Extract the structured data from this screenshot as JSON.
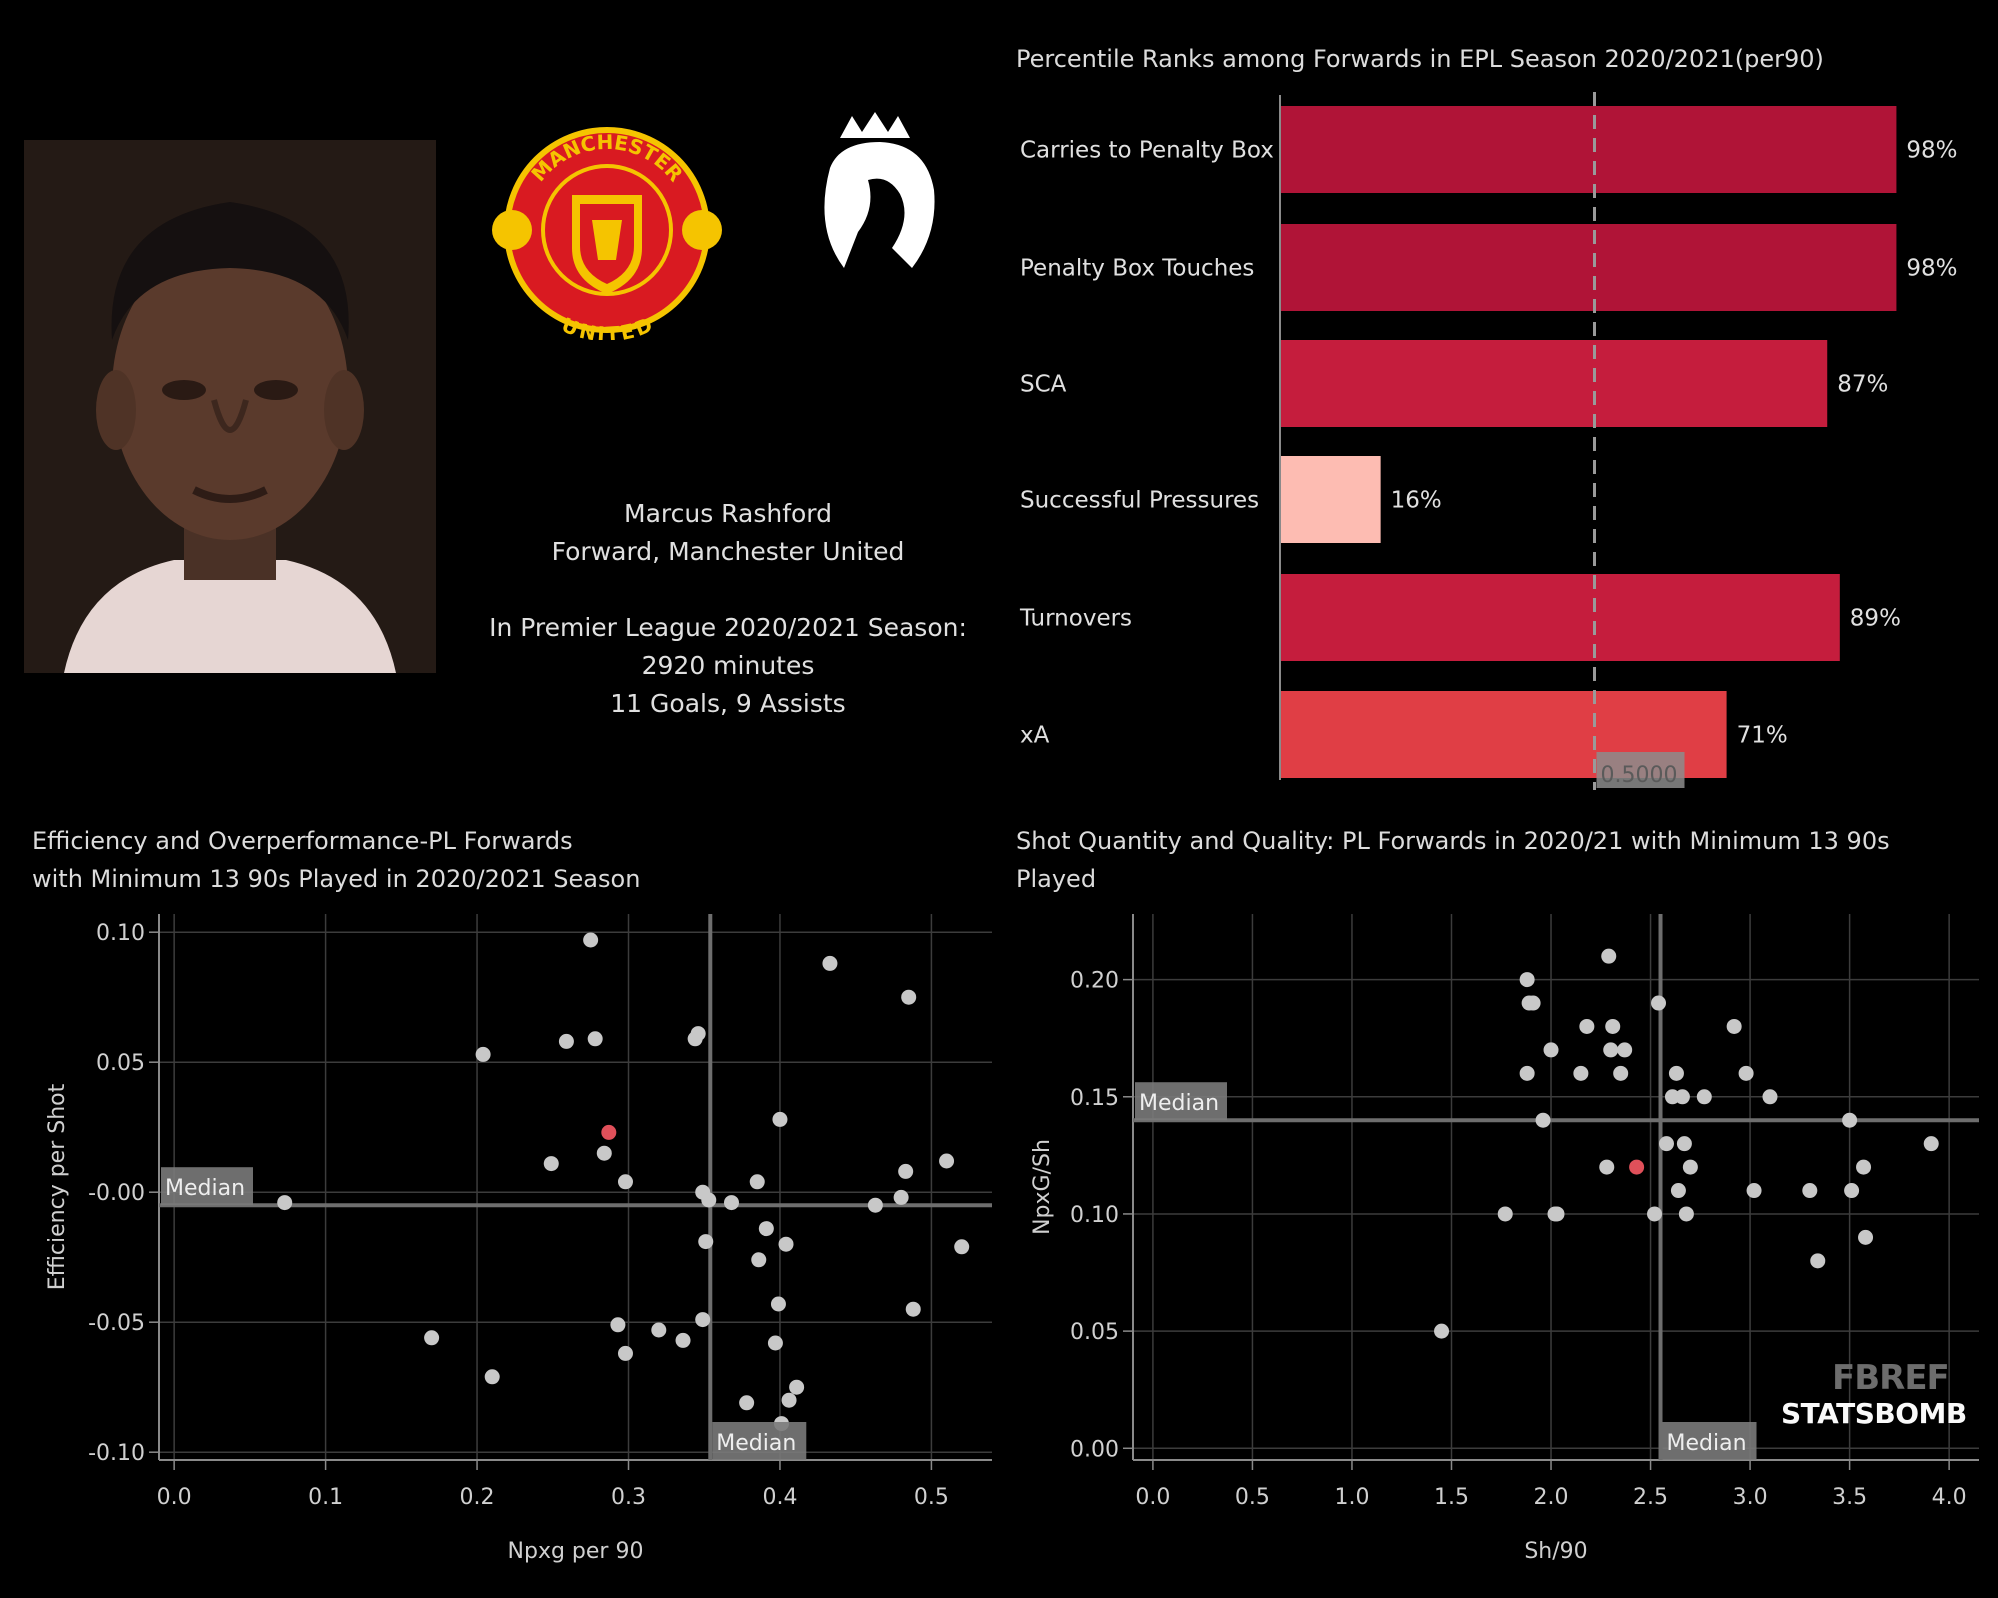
{
  "player": {
    "name": "Marcus Rashford",
    "role": "Forward, Manchester United",
    "season_line": "In Premier League 2020/2021 Season:",
    "minutes": "2920 minutes",
    "goals_assists": "11 Goals, 9 Assists"
  },
  "logos": {
    "club_top": "MANCHESTER",
    "club_bottom": "UNITED",
    "club_icon": "manchester-united-crest",
    "league_icon": "premier-league-lion"
  },
  "watermarks": {
    "fbref": "FBREF",
    "statsbomb": "STATSBOMB"
  },
  "chart_data": [
    {
      "type": "bar",
      "orientation": "horizontal",
      "title": "Percentile Ranks among Forwards in EPL Season 2020/2021(per90)",
      "categories": [
        "Carries to Penalty Box",
        "Penalty Box Touches",
        "SCA",
        "Successful Pressures",
        "Turnovers",
        "xA"
      ],
      "values": [
        0.98,
        0.98,
        0.87,
        0.16,
        0.89,
        0.71
      ],
      "value_labels": [
        "98%",
        "98%",
        "87%",
        "16%",
        "89%",
        "71%"
      ],
      "colors": [
        "#b01437",
        "#b01437",
        "#c51d3d",
        "#fdbcb2",
        "#c51d3d",
        "#e03e45"
      ],
      "xlim": [
        0,
        1
      ],
      "reference_line": {
        "value": 0.5,
        "label": "0.5000"
      }
    },
    {
      "type": "scatter",
      "title": [
        "Efficiency and Overperformance-PL Forwards",
        "with Minimum 13 90s Played in 2020/2021 Season"
      ],
      "xlabel": "Npxg per 90",
      "ylabel": "Efficiency per Shot",
      "xlim": [
        -0.01,
        0.54
      ],
      "ylim": [
        -0.103,
        0.107
      ],
      "xticks": [
        0.0,
        0.1,
        0.2,
        0.3,
        0.4,
        0.5
      ],
      "xtick_labels": [
        "0.0",
        "0.1",
        "0.2",
        "0.3",
        "0.4",
        "0.5"
      ],
      "yticks": [
        0.1,
        0.05,
        0.0,
        -0.05,
        -0.1
      ],
      "ytick_labels": [
        "0.10",
        "0.05",
        "-0.00",
        "-0.05",
        "-0.10"
      ],
      "median_x": 0.354,
      "median_y": -0.005,
      "median_label": "Median",
      "grid": true,
      "highlight_color": "#e0505a",
      "point_color": "#c8c8c8",
      "points": [
        {
          "x": 0.073,
          "y": -0.004
        },
        {
          "x": 0.17,
          "y": -0.056
        },
        {
          "x": 0.204,
          "y": 0.053
        },
        {
          "x": 0.21,
          "y": -0.071
        },
        {
          "x": 0.249,
          "y": 0.011
        },
        {
          "x": 0.259,
          "y": 0.058
        },
        {
          "x": 0.275,
          "y": 0.097
        },
        {
          "x": 0.278,
          "y": 0.059
        },
        {
          "x": 0.284,
          "y": 0.015
        },
        {
          "x": 0.287,
          "y": 0.023,
          "highlight": true
        },
        {
          "x": 0.293,
          "y": -0.051
        },
        {
          "x": 0.298,
          "y": 0.004
        },
        {
          "x": 0.298,
          "y": -0.062
        },
        {
          "x": 0.32,
          "y": -0.053
        },
        {
          "x": 0.336,
          "y": -0.057
        },
        {
          "x": 0.344,
          "y": 0.059
        },
        {
          "x": 0.346,
          "y": 0.061
        },
        {
          "x": 0.349,
          "y": 0.0
        },
        {
          "x": 0.349,
          "y": -0.049
        },
        {
          "x": 0.351,
          "y": -0.019
        },
        {
          "x": 0.353,
          "y": -0.003
        },
        {
          "x": 0.368,
          "y": -0.004
        },
        {
          "x": 0.378,
          "y": -0.081
        },
        {
          "x": 0.385,
          "y": 0.004
        },
        {
          "x": 0.386,
          "y": -0.026
        },
        {
          "x": 0.391,
          "y": -0.014
        },
        {
          "x": 0.397,
          "y": -0.058
        },
        {
          "x": 0.399,
          "y": -0.043
        },
        {
          "x": 0.4,
          "y": 0.028
        },
        {
          "x": 0.401,
          "y": -0.089
        },
        {
          "x": 0.404,
          "y": -0.02
        },
        {
          "x": 0.406,
          "y": -0.08
        },
        {
          "x": 0.411,
          "y": -0.075
        },
        {
          "x": 0.433,
          "y": 0.088
        },
        {
          "x": 0.463,
          "y": -0.005
        },
        {
          "x": 0.48,
          "y": -0.002
        },
        {
          "x": 0.483,
          "y": 0.008
        },
        {
          "x": 0.485,
          "y": 0.075
        },
        {
          "x": 0.488,
          "y": -0.045
        },
        {
          "x": 0.51,
          "y": 0.012
        },
        {
          "x": 0.52,
          "y": -0.021
        }
      ]
    },
    {
      "type": "scatter",
      "title": [
        "Shot Quantity and Quality: PL Forwards in 2020/21 with Minimum 13 90s",
        "Played"
      ],
      "xlabel": "Sh/90",
      "ylabel": "NpxG/Sh",
      "xlim": [
        -0.1,
        4.15
      ],
      "ylim": [
        -0.005,
        0.228
      ],
      "xticks": [
        0.0,
        0.5,
        1.0,
        1.5,
        2.0,
        2.5,
        3.0,
        3.5,
        4.0
      ],
      "xtick_labels": [
        "0.0",
        "0.5",
        "1.0",
        "1.5",
        "2.0",
        "2.5",
        "3.0",
        "3.5",
        "4.0"
      ],
      "yticks": [
        0.2,
        0.15,
        0.1,
        0.05,
        0.0
      ],
      "ytick_labels": [
        "0.20",
        "0.15",
        "0.10",
        "0.05",
        "0.00"
      ],
      "median_x": 2.55,
      "median_y": 0.14,
      "median_label": "Median",
      "grid": true,
      "highlight_color": "#e0505a",
      "point_color": "#c8c8c8",
      "points": [
        {
          "x": 1.45,
          "y": 0.05
        },
        {
          "x": 1.77,
          "y": 0.1
        },
        {
          "x": 1.88,
          "y": 0.2
        },
        {
          "x": 1.88,
          "y": 0.16
        },
        {
          "x": 1.89,
          "y": 0.19
        },
        {
          "x": 1.91,
          "y": 0.19
        },
        {
          "x": 1.96,
          "y": 0.14
        },
        {
          "x": 2.0,
          "y": 0.17
        },
        {
          "x": 2.02,
          "y": 0.1
        },
        {
          "x": 2.03,
          "y": 0.1
        },
        {
          "x": 2.15,
          "y": 0.16
        },
        {
          "x": 2.18,
          "y": 0.18
        },
        {
          "x": 2.28,
          "y": 0.12
        },
        {
          "x": 2.29,
          "y": 0.21
        },
        {
          "x": 2.3,
          "y": 0.17
        },
        {
          "x": 2.31,
          "y": 0.18
        },
        {
          "x": 2.35,
          "y": 0.16
        },
        {
          "x": 2.37,
          "y": 0.17
        },
        {
          "x": 2.43,
          "y": 0.12,
          "highlight": true
        },
        {
          "x": 2.52,
          "y": 0.1
        },
        {
          "x": 2.54,
          "y": 0.19
        },
        {
          "x": 2.58,
          "y": 0.13
        },
        {
          "x": 2.61,
          "y": 0.15
        },
        {
          "x": 2.63,
          "y": 0.16
        },
        {
          "x": 2.64,
          "y": 0.11
        },
        {
          "x": 2.66,
          "y": 0.15
        },
        {
          "x": 2.67,
          "y": 0.13
        },
        {
          "x": 2.68,
          "y": 0.1
        },
        {
          "x": 2.7,
          "y": 0.12
        },
        {
          "x": 2.77,
          "y": 0.15
        },
        {
          "x": 2.92,
          "y": 0.18
        },
        {
          "x": 2.98,
          "y": 0.16
        },
        {
          "x": 3.02,
          "y": 0.11
        },
        {
          "x": 3.1,
          "y": 0.15
        },
        {
          "x": 3.3,
          "y": 0.11
        },
        {
          "x": 3.34,
          "y": 0.08
        },
        {
          "x": 3.5,
          "y": 0.14
        },
        {
          "x": 3.51,
          "y": 0.11
        },
        {
          "x": 3.57,
          "y": 0.12
        },
        {
          "x": 3.58,
          "y": 0.09
        },
        {
          "x": 3.91,
          "y": 0.13
        }
      ]
    }
  ]
}
